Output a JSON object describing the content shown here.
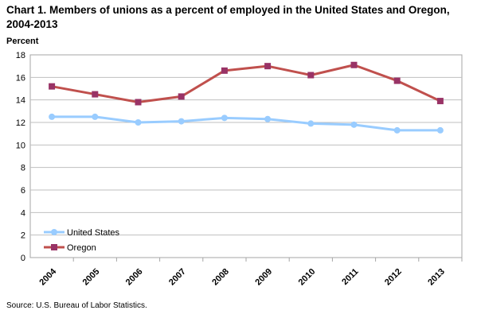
{
  "chart_data": {
    "type": "line",
    "title": "Chart 1. Members of unions as a percent of employed in the United States and Oregon, 2004-2013",
    "ylabel": "Percent",
    "xlabel": "",
    "source": "Source: U.S. Bureau of Labor Statistics.",
    "categories": [
      "2004",
      "2005",
      "2006",
      "2007",
      "2008",
      "2009",
      "2010",
      "2011",
      "2012",
      "2013"
    ],
    "ylim": [
      0,
      18
    ],
    "yticks": [
      0,
      2,
      4,
      6,
      8,
      10,
      12,
      14,
      16,
      18
    ],
    "grid": true,
    "legend_position": "bottom-left",
    "series": [
      {
        "name": "United States",
        "color": "#99CCFF",
        "marker": "circle",
        "values": [
          12.5,
          12.5,
          12.0,
          12.1,
          12.4,
          12.3,
          11.9,
          11.8,
          11.3,
          11.3
        ]
      },
      {
        "name": "Oregon",
        "color": "#C0504D",
        "marker_color": "#993366",
        "marker": "square",
        "values": [
          15.2,
          14.5,
          13.8,
          14.3,
          16.6,
          17.0,
          16.2,
          17.1,
          15.7,
          13.9
        ]
      }
    ]
  }
}
